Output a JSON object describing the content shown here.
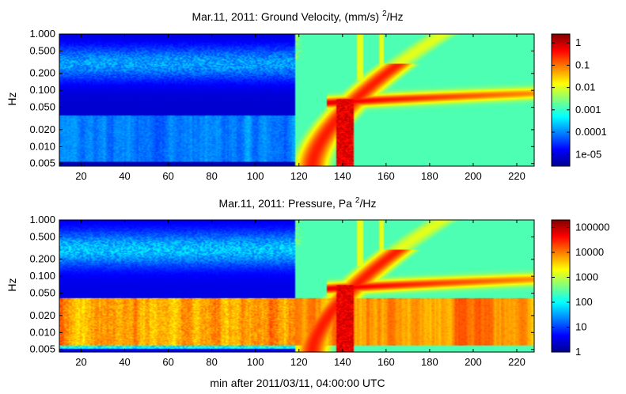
{
  "chart_data": [
    {
      "type": "heatmap",
      "title": "Mar.11, 2011: Ground Velocity, (mm/s)",
      "title_sup": "2",
      "title_tail": "/Hz",
      "ylabel": "Hz",
      "xlabel": "",
      "xlim": [
        10,
        228
      ],
      "ylim": [
        0.0045,
        1.0
      ],
      "yscale": "log",
      "x_ticks": [
        20,
        40,
        60,
        80,
        100,
        120,
        140,
        160,
        180,
        200,
        220
      ],
      "y_ticks": [
        1.0,
        0.5,
        0.2,
        0.1,
        0.05,
        0.02,
        0.01,
        0.005
      ],
      "y_tick_labels": [
        "1.000",
        "0.500",
        "0.200",
        "0.100",
        "0.050",
        "0.020",
        "0.010",
        "0.005"
      ],
      "colorbar": {
        "scale": "log",
        "range": [
          3e-06,
          2.5
        ],
        "ticks": [
          1,
          0.1,
          0.01,
          0.001,
          0.0001,
          1e-05
        ],
        "tick_labels": [
          "1",
          "0.1",
          "0.01",
          "0.001",
          "0.0001",
          "1e-05"
        ]
      },
      "event_onset_min": 118
    },
    {
      "type": "heatmap",
      "title": "Mar.11, 2011: Pressure, Pa",
      "title_sup": "2",
      "title_tail": "/Hz",
      "ylabel": "Hz",
      "xlabel": "min after 2011/03/11, 04:00:00 UTC",
      "xlim": [
        10,
        228
      ],
      "ylim": [
        0.0045,
        1.0
      ],
      "yscale": "log",
      "x_ticks": [
        20,
        40,
        60,
        80,
        100,
        120,
        140,
        160,
        180,
        200,
        220
      ],
      "y_ticks": [
        1.0,
        0.5,
        0.2,
        0.1,
        0.05,
        0.02,
        0.01,
        0.005
      ],
      "y_tick_labels": [
        "1.000",
        "0.500",
        "0.200",
        "0.100",
        "0.050",
        "0.020",
        "0.010",
        "0.005"
      ],
      "colorbar": {
        "scale": "log",
        "range": [
          1,
          200000
        ],
        "ticks": [
          100000,
          10000,
          1000,
          100,
          10,
          1
        ],
        "tick_labels": [
          "100000",
          "10000",
          "1000",
          "100",
          "10",
          "1"
        ]
      },
      "event_onset_min": 118
    }
  ]
}
